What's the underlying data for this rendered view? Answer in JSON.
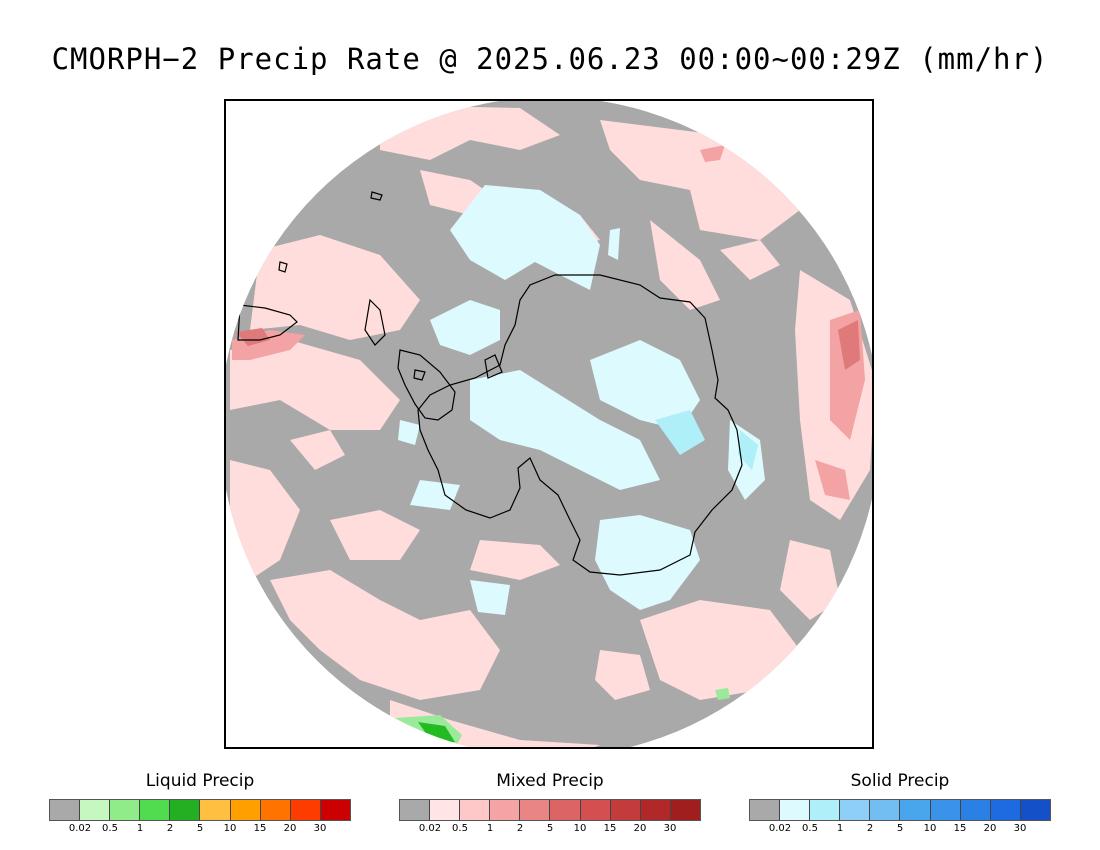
{
  "title": "CMORPH−2 Precip Rate @ 2025.06.23 00:00~00:29Z (mm/hr)",
  "map": {
    "projection": "south polar stereographic",
    "colors": {
      "background": "#ffffff",
      "no_precip": "#a9a9a9",
      "mixed_light": "#ffdddd",
      "mixed_mid": "#f7a8a8",
      "mixed_heavy": "#e27a7a",
      "solid_light": "#ddfaff",
      "solid_mid": "#aeeff8",
      "liquid_light": "#9be99b",
      "liquid_heavy": "#22bb22",
      "coastline": "#000000"
    }
  },
  "legends": [
    {
      "title": "Liquid Precip",
      "colors": [
        "#a9a9a9",
        "#c6f7c0",
        "#8fec88",
        "#4fdd4f",
        "#22b022",
        "#ffbf40",
        "#ffa000",
        "#ff7300",
        "#ff3c00",
        "#cc0000"
      ],
      "ticks": [
        "0.02",
        "0.5",
        "1",
        "2",
        "5",
        "10",
        "15",
        "20",
        "30"
      ]
    },
    {
      "title": "Mixed Precip",
      "colors": [
        "#a9a9a9",
        "#ffe5e5",
        "#ffc8c8",
        "#f4a4a4",
        "#ea8585",
        "#dd6464",
        "#d45050",
        "#c43b3b",
        "#b22828",
        "#a01e1e"
      ],
      "ticks": [
        "0.02",
        "0.5",
        "1",
        "2",
        "5",
        "10",
        "15",
        "20",
        "30"
      ]
    },
    {
      "title": "Solid Precip",
      "colors": [
        "#a9a9a9",
        "#ddfaff",
        "#aeeffa",
        "#8ecff8",
        "#72bdf2",
        "#4aa6ec",
        "#3a92ea",
        "#2a80e4",
        "#1e6ae0",
        "#1450c8"
      ],
      "ticks": [
        "0.02",
        "0.5",
        "1",
        "2",
        "5",
        "10",
        "15",
        "20",
        "30"
      ]
    }
  ]
}
